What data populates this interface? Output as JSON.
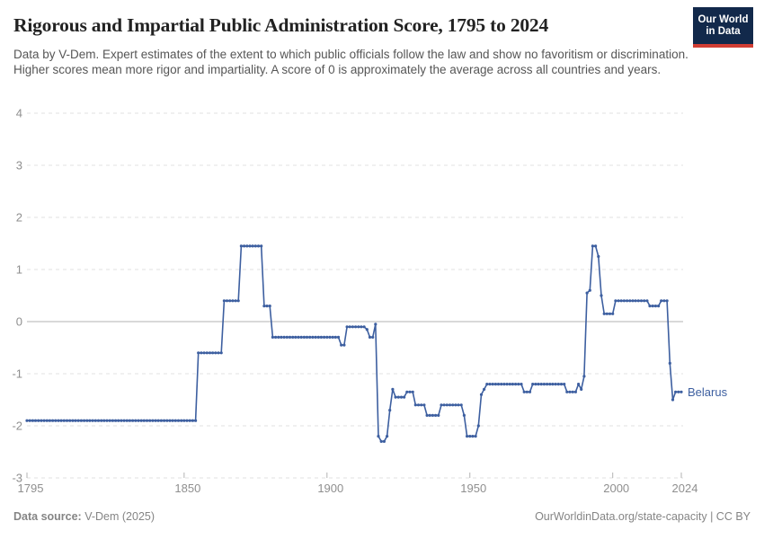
{
  "header": {
    "title": "Rigorous and Impartial Public Administration Score, 1795 to 2024",
    "logo": {
      "line1": "Our World",
      "line2": "in Data"
    }
  },
  "subtitle": "Data by V-Dem. Expert estimates of the extent to which public officials follow the law and show no favoritism or discrimination. Higher scores mean more rigor and impartiality. A score of 0 is approximately the average across all countries and years.",
  "chart_data": {
    "type": "line",
    "title": "Rigorous and Impartial Public Administration Score, 1795 to 2024",
    "entity": "Belarus",
    "xlabel": "",
    "ylabel": "",
    "x_range": [
      1795,
      2024
    ],
    "y_range": [
      -3,
      4
    ],
    "x_ticks": [
      1795,
      1850,
      1900,
      1950,
      2000,
      2024
    ],
    "y_ticks": [
      4,
      3,
      2,
      1,
      0,
      -1,
      -2,
      -3
    ],
    "grid": "dashed horizontal gridlines, solid zero line",
    "legend_position": "end-of-line label",
    "series_segments_note": "[startYear, endYear, score] - yearly points",
    "series_segments": [
      [
        1795,
        1854,
        -1.9
      ],
      [
        1855,
        1863,
        -0.6
      ],
      [
        1864,
        1869,
        0.4
      ],
      [
        1870,
        1877,
        1.45
      ],
      [
        1878,
        1880,
        0.3
      ],
      [
        1881,
        1904,
        -0.3
      ],
      [
        1905,
        1906,
        -0.45
      ],
      [
        1907,
        1913,
        -0.1
      ],
      [
        1914,
        1914,
        -0.15
      ],
      [
        1915,
        1916,
        -0.3
      ],
      [
        1917,
        1917,
        -0.05
      ],
      [
        1918,
        1918,
        -2.2
      ],
      [
        1919,
        1920,
        -2.3
      ],
      [
        1921,
        1921,
        -2.2
      ],
      [
        1922,
        1922,
        -1.7
      ],
      [
        1923,
        1923,
        -1.3
      ],
      [
        1924,
        1927,
        -1.45
      ],
      [
        1928,
        1930,
        -1.35
      ],
      [
        1931,
        1934,
        -1.6
      ],
      [
        1935,
        1939,
        -1.8
      ],
      [
        1940,
        1947,
        -1.6
      ],
      [
        1948,
        1948,
        -1.8
      ],
      [
        1949,
        1952,
        -2.2
      ],
      [
        1953,
        1953,
        -2.0
      ],
      [
        1954,
        1954,
        -1.4
      ],
      [
        1955,
        1955,
        -1.3
      ],
      [
        1956,
        1968,
        -1.2
      ],
      [
        1969,
        1971,
        -1.35
      ],
      [
        1972,
        1983,
        -1.2
      ],
      [
        1984,
        1987,
        -1.35
      ],
      [
        1988,
        1988,
        -1.2
      ],
      [
        1989,
        1989,
        -1.3
      ],
      [
        1990,
        1990,
        -1.05
      ],
      [
        1991,
        1991,
        0.55
      ],
      [
        1992,
        1992,
        0.6
      ],
      [
        1993,
        1994,
        1.45
      ],
      [
        1995,
        1995,
        1.25
      ],
      [
        1996,
        1996,
        0.5
      ],
      [
        1997,
        2000,
        0.15
      ],
      [
        2001,
        2012,
        0.4
      ],
      [
        2013,
        2016,
        0.3
      ],
      [
        2017,
        2019,
        0.4
      ],
      [
        2020,
        2020,
        -0.8
      ],
      [
        2021,
        2021,
        -1.5
      ],
      [
        2022,
        2024,
        -1.35
      ]
    ],
    "colors": {
      "line": "#3d5fa0",
      "grid": "#e0e0e0",
      "zero_line": "#b3b3b3",
      "axis_text": "#8f8f8f"
    }
  },
  "footer": {
    "source_label": "Data source:",
    "source_value": " V-Dem (2025)",
    "url_text": "OurWorldinData.org/state-capacity",
    "license_text": " | CC BY"
  }
}
